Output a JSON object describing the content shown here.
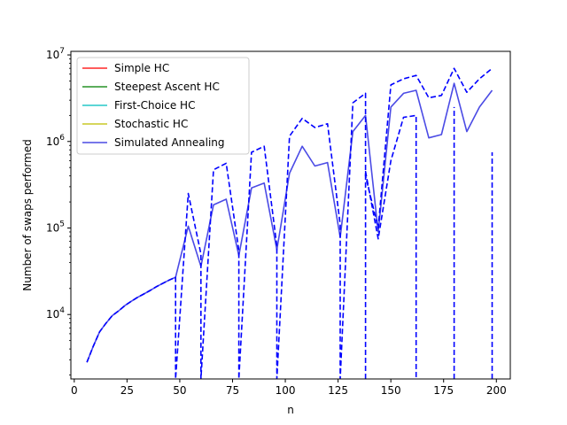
{
  "chart_data": {
    "type": "line",
    "xlabel": "n",
    "ylabel": "Number of swaps performed",
    "xlim": [
      -1.6,
      206.6
    ],
    "ylim": [
      1800,
      11000000
    ],
    "yscale": "log",
    "x_ticks": [
      0,
      25,
      50,
      75,
      100,
      125,
      150,
      175,
      200
    ],
    "x_tick_labels": [
      "0",
      "25",
      "50",
      "75",
      "100",
      "125",
      "150",
      "175",
      "200"
    ],
    "y_ticks": [
      10000,
      100000,
      1000000,
      10000000
    ],
    "y_tick_labels": [
      {
        "base": "10",
        "exp": "4"
      },
      {
        "base": "10",
        "exp": "5"
      },
      {
        "base": "10",
        "exp": "6"
      },
      {
        "base": "10",
        "exp": "7"
      }
    ],
    "legend_position": "upper-left",
    "series": [
      {
        "name": "Simple HC",
        "color": "#ff0000",
        "style": "solid",
        "points": []
      },
      {
        "name": "Steepest Ascent HC",
        "color": "#008000",
        "style": "solid",
        "points": []
      },
      {
        "name": "First-Choice HC",
        "color": "#00bfbf",
        "style": "solid",
        "points": []
      },
      {
        "name": "Stochastic HC",
        "color": "#bfbf00",
        "style": "solid",
        "points": []
      },
      {
        "name": "Simulated Annealing",
        "color": "#2b2be0",
        "style": "solid",
        "points": [
          [
            6,
            2800
          ],
          [
            9,
            4300
          ],
          [
            12,
            6300
          ],
          [
            15,
            7900
          ],
          [
            18,
            9700
          ],
          [
            21,
            11000
          ],
          [
            24,
            12700
          ],
          [
            27,
            14200
          ],
          [
            30,
            15800
          ],
          [
            33,
            17300
          ],
          [
            36,
            19000
          ],
          [
            39,
            21000
          ],
          [
            42,
            23000
          ],
          [
            45,
            25000
          ],
          [
            48,
            27000
          ],
          [
            54,
            105000
          ],
          [
            60,
            36000
          ],
          [
            66,
            185000
          ],
          [
            72,
            215000
          ],
          [
            78,
            48000
          ],
          [
            84,
            290000
          ],
          [
            90,
            330000
          ],
          [
            96,
            56000
          ],
          [
            102,
            430000
          ],
          [
            108,
            880000
          ],
          [
            114,
            520000
          ],
          [
            120,
            570000
          ],
          [
            126,
            78000
          ],
          [
            132,
            1300000
          ],
          [
            138,
            2000000
          ],
          [
            144,
            90000
          ],
          [
            150,
            2500000
          ],
          [
            156,
            3600000
          ],
          [
            162,
            3900000
          ],
          [
            168,
            1100000
          ],
          [
            174,
            1200000
          ],
          [
            180,
            4700000
          ],
          [
            186,
            1300000
          ],
          [
            192,
            2500000
          ],
          [
            198,
            3900000
          ]
        ]
      },
      {
        "name": "",
        "color": "#0000ff",
        "style": "dashed",
        "points": [
          [
            6,
            2800
          ],
          [
            9,
            4300
          ],
          [
            12,
            6300
          ],
          [
            15,
            7900
          ],
          [
            18,
            9700
          ],
          [
            21,
            11000
          ],
          [
            24,
            12700
          ],
          [
            27,
            14200
          ],
          [
            30,
            15800
          ],
          [
            33,
            17300
          ],
          [
            36,
            19000
          ],
          [
            39,
            21000
          ],
          [
            42,
            23000
          ],
          [
            45,
            25000
          ],
          [
            48,
            27000
          ],
          [
            48,
            1800
          ],
          [
            54,
            250000
          ],
          [
            60,
            50000
          ],
          [
            60,
            1800
          ],
          [
            66,
            470000
          ],
          [
            72,
            560000
          ],
          [
            78,
            55000
          ],
          [
            78,
            1800
          ],
          [
            84,
            750000
          ],
          [
            90,
            880000
          ],
          [
            96,
            62000
          ],
          [
            96,
            1800
          ],
          [
            102,
            1150000
          ],
          [
            108,
            1850000
          ],
          [
            114,
            1450000
          ],
          [
            120,
            1600000
          ],
          [
            126,
            110000
          ],
          [
            126,
            1800
          ],
          [
            132,
            2800000
          ],
          [
            138,
            3600000
          ],
          [
            138,
            400000
          ],
          [
            144,
            100000
          ],
          [
            150,
            4500000
          ],
          [
            156,
            5300000
          ],
          [
            162,
            5800000
          ],
          [
            168,
            3200000
          ],
          [
            174,
            3400000
          ],
          [
            180,
            7000000
          ],
          [
            186,
            3700000
          ],
          [
            192,
            5300000
          ],
          [
            198,
            7000000
          ]
        ]
      },
      {
        "name": "",
        "color": "#0000ff",
        "style": "dashed",
        "points": [
          [
            138,
            1800
          ],
          [
            138,
            450000
          ],
          [
            144,
            75000
          ],
          [
            150,
            600000
          ],
          [
            156,
            1900000
          ],
          [
            162,
            2000000
          ],
          [
            162,
            1800
          ]
        ]
      },
      {
        "name": "",
        "color": "#0000ff",
        "style": "dashed",
        "points": [
          [
            180,
            1800
          ],
          [
            180,
            2500000
          ]
        ]
      },
      {
        "name": "",
        "color": "#0000ff",
        "style": "dashed",
        "points": [
          [
            198,
            1800
          ],
          [
            198,
            750000
          ]
        ]
      }
    ]
  }
}
